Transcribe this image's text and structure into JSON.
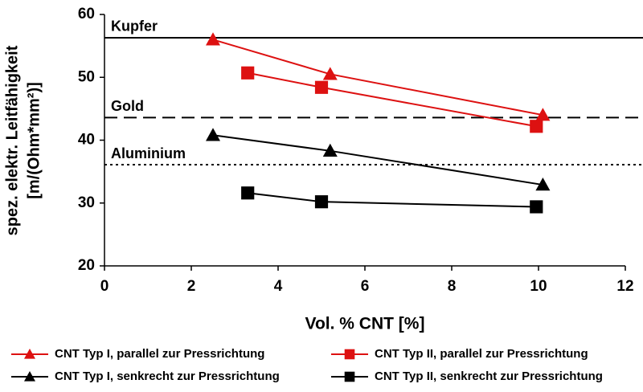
{
  "chart_data": {
    "type": "line",
    "xlabel": "Vol. % CNT [%]",
    "ylabel": [
      "spez. elektr. Leitfähigkeit",
      "[m/(Ohm*mm²)]"
    ],
    "xlim": [
      0,
      12
    ],
    "xticks": [
      0,
      2,
      4,
      6,
      8,
      10,
      12
    ],
    "ylim": [
      20,
      60
    ],
    "yticks": [
      20,
      30,
      40,
      50,
      60
    ],
    "grid": false,
    "legend": "bottom",
    "reference_lines": [
      {
        "label": "Kupfer",
        "value": 56.3,
        "style": "solid",
        "color": "#000000"
      },
      {
        "label": "Gold",
        "value": 43.6,
        "style": "dashed",
        "color": "#000000"
      },
      {
        "label": "Aluminium",
        "value": 36.1,
        "style": "dotted",
        "color": "#000000"
      }
    ],
    "series": [
      {
        "name": "CNT Typ I, parallel zur Pressrichtung",
        "color": "#dd1111",
        "marker": "triangle",
        "x": [
          2.5,
          5.2,
          10.1
        ],
        "values": [
          56,
          50.5,
          44
        ]
      },
      {
        "name": "CNT Typ II, parallel zur Pressrichtung",
        "color": "#dd1111",
        "marker": "square",
        "x": [
          3.3,
          5.0,
          9.95
        ],
        "values": [
          50.7,
          48.4,
          42.2
        ]
      },
      {
        "name": "CNT Typ I, senkrecht zur Pressrichtung",
        "color": "#000000",
        "marker": "triangle",
        "x": [
          2.5,
          5.2,
          10.1
        ],
        "values": [
          40.8,
          38.3,
          32.9
        ]
      },
      {
        "name": "CNT Typ II, senkrecht zur Pressrichtung",
        "color": "#000000",
        "marker": "square",
        "x": [
          3.3,
          5.0,
          9.95
        ],
        "values": [
          31.6,
          30.2,
          29.4
        ]
      }
    ]
  }
}
